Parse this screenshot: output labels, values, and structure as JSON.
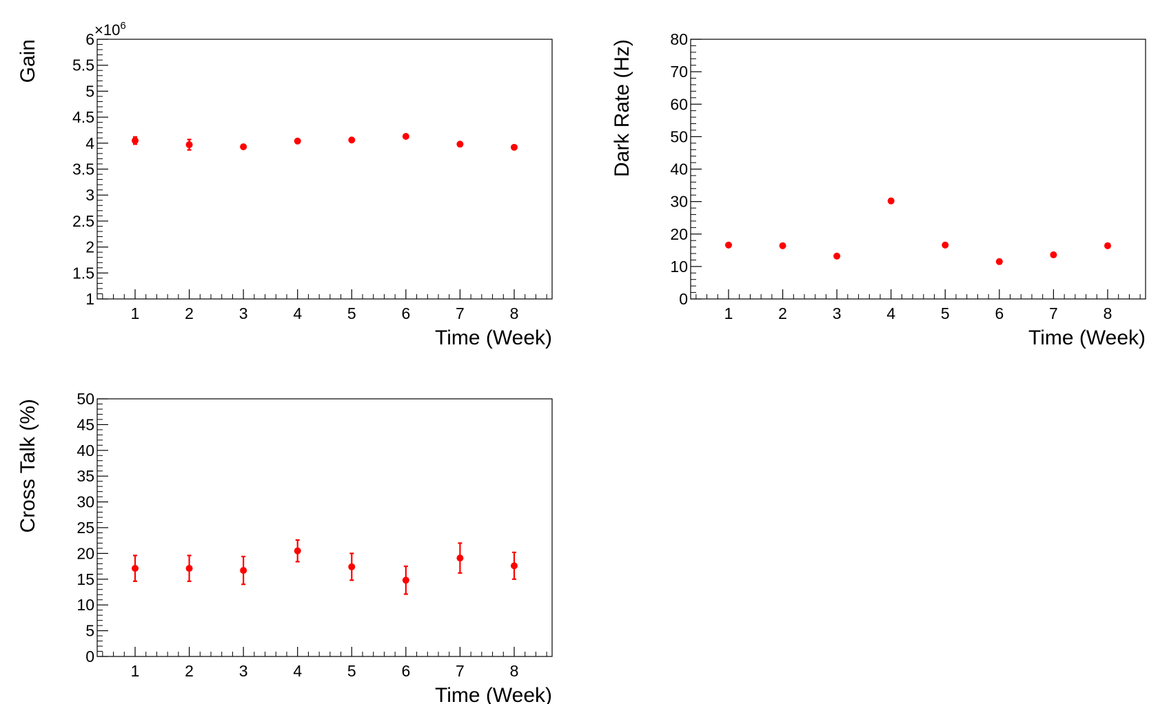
{
  "chart_data": [
    {
      "type": "scatter",
      "title": "",
      "xlabel": "Time (Week)",
      "ylabel": "Gain",
      "y_exponent_label": "×10",
      "y_exponent_power": "6",
      "xlim": [
        0.3,
        8.7
      ],
      "ylim": [
        1,
        6
      ],
      "x_ticks": [
        1,
        2,
        3,
        4,
        5,
        6,
        7,
        8
      ],
      "x_tick_labels": [
        "1",
        "2",
        "3",
        "4",
        "5",
        "6",
        "7",
        "8"
      ],
      "y_ticks": [
        1,
        1.5,
        2,
        2.5,
        3,
        3.5,
        4,
        4.5,
        5,
        5.5,
        6
      ],
      "y_tick_labels": [
        "1",
        "1.5",
        "2",
        "2.5",
        "3",
        "3.5",
        "4",
        "4.5",
        "5",
        "5.5",
        "6"
      ],
      "grid": false,
      "legend": "none",
      "marker_color": "#ff0000",
      "series": [
        {
          "x": [
            1,
            2,
            3,
            4,
            5,
            6,
            7,
            8
          ],
          "y": [
            4.05,
            3.97,
            3.93,
            4.04,
            4.06,
            4.13,
            3.98,
            3.92
          ],
          "yerr": [
            0.07,
            0.1,
            0.04,
            0.04,
            0.04,
            0.04,
            0.05,
            0.05
          ]
        }
      ]
    },
    {
      "type": "scatter",
      "title": "",
      "xlabel": "Time (Week)",
      "ylabel": "Dark Rate (Hz)",
      "xlim": [
        0.3,
        8.7
      ],
      "ylim": [
        0,
        80
      ],
      "x_ticks": [
        1,
        2,
        3,
        4,
        5,
        6,
        7,
        8
      ],
      "x_tick_labels": [
        "1",
        "2",
        "3",
        "4",
        "5",
        "6",
        "7",
        "8"
      ],
      "y_ticks": [
        0,
        10,
        20,
        30,
        40,
        50,
        60,
        70,
        80
      ],
      "y_tick_labels": [
        "0",
        "10",
        "20",
        "30",
        "40",
        "50",
        "60",
        "70",
        "80"
      ],
      "grid": false,
      "legend": "none",
      "marker_color": "#ff0000",
      "series": [
        {
          "x": [
            1,
            2,
            3,
            4,
            5,
            6,
            7,
            8
          ],
          "y": [
            16.6,
            16.4,
            13.2,
            30.2,
            16.6,
            11.5,
            13.6,
            16.4
          ],
          "yerr": [
            0.6,
            0.6,
            0.6,
            0.6,
            0.6,
            0.6,
            0.6,
            0.6
          ]
        }
      ]
    },
    {
      "type": "scatter",
      "title": "",
      "xlabel": "Time (Week)",
      "ylabel": "Cross Talk (%)",
      "xlim": [
        0.3,
        8.7
      ],
      "ylim": [
        0,
        50
      ],
      "x_ticks": [
        1,
        2,
        3,
        4,
        5,
        6,
        7,
        8
      ],
      "x_tick_labels": [
        "1",
        "2",
        "3",
        "4",
        "5",
        "6",
        "7",
        "8"
      ],
      "y_ticks": [
        0,
        5,
        10,
        15,
        20,
        25,
        30,
        35,
        40,
        45,
        50
      ],
      "y_tick_labels": [
        "0",
        "5",
        "10",
        "15",
        "20",
        "25",
        "30",
        "35",
        "40",
        "45",
        "50"
      ],
      "grid": false,
      "legend": "none",
      "marker_color": "#ff0000",
      "series": [
        {
          "x": [
            1,
            2,
            3,
            4,
            5,
            6,
            7,
            8
          ],
          "y": [
            17.1,
            17.1,
            16.7,
            20.5,
            17.4,
            14.8,
            19.1,
            17.6
          ],
          "yerr": [
            2.5,
            2.5,
            2.7,
            2.1,
            2.6,
            2.7,
            2.9,
            2.6
          ]
        }
      ]
    }
  ]
}
